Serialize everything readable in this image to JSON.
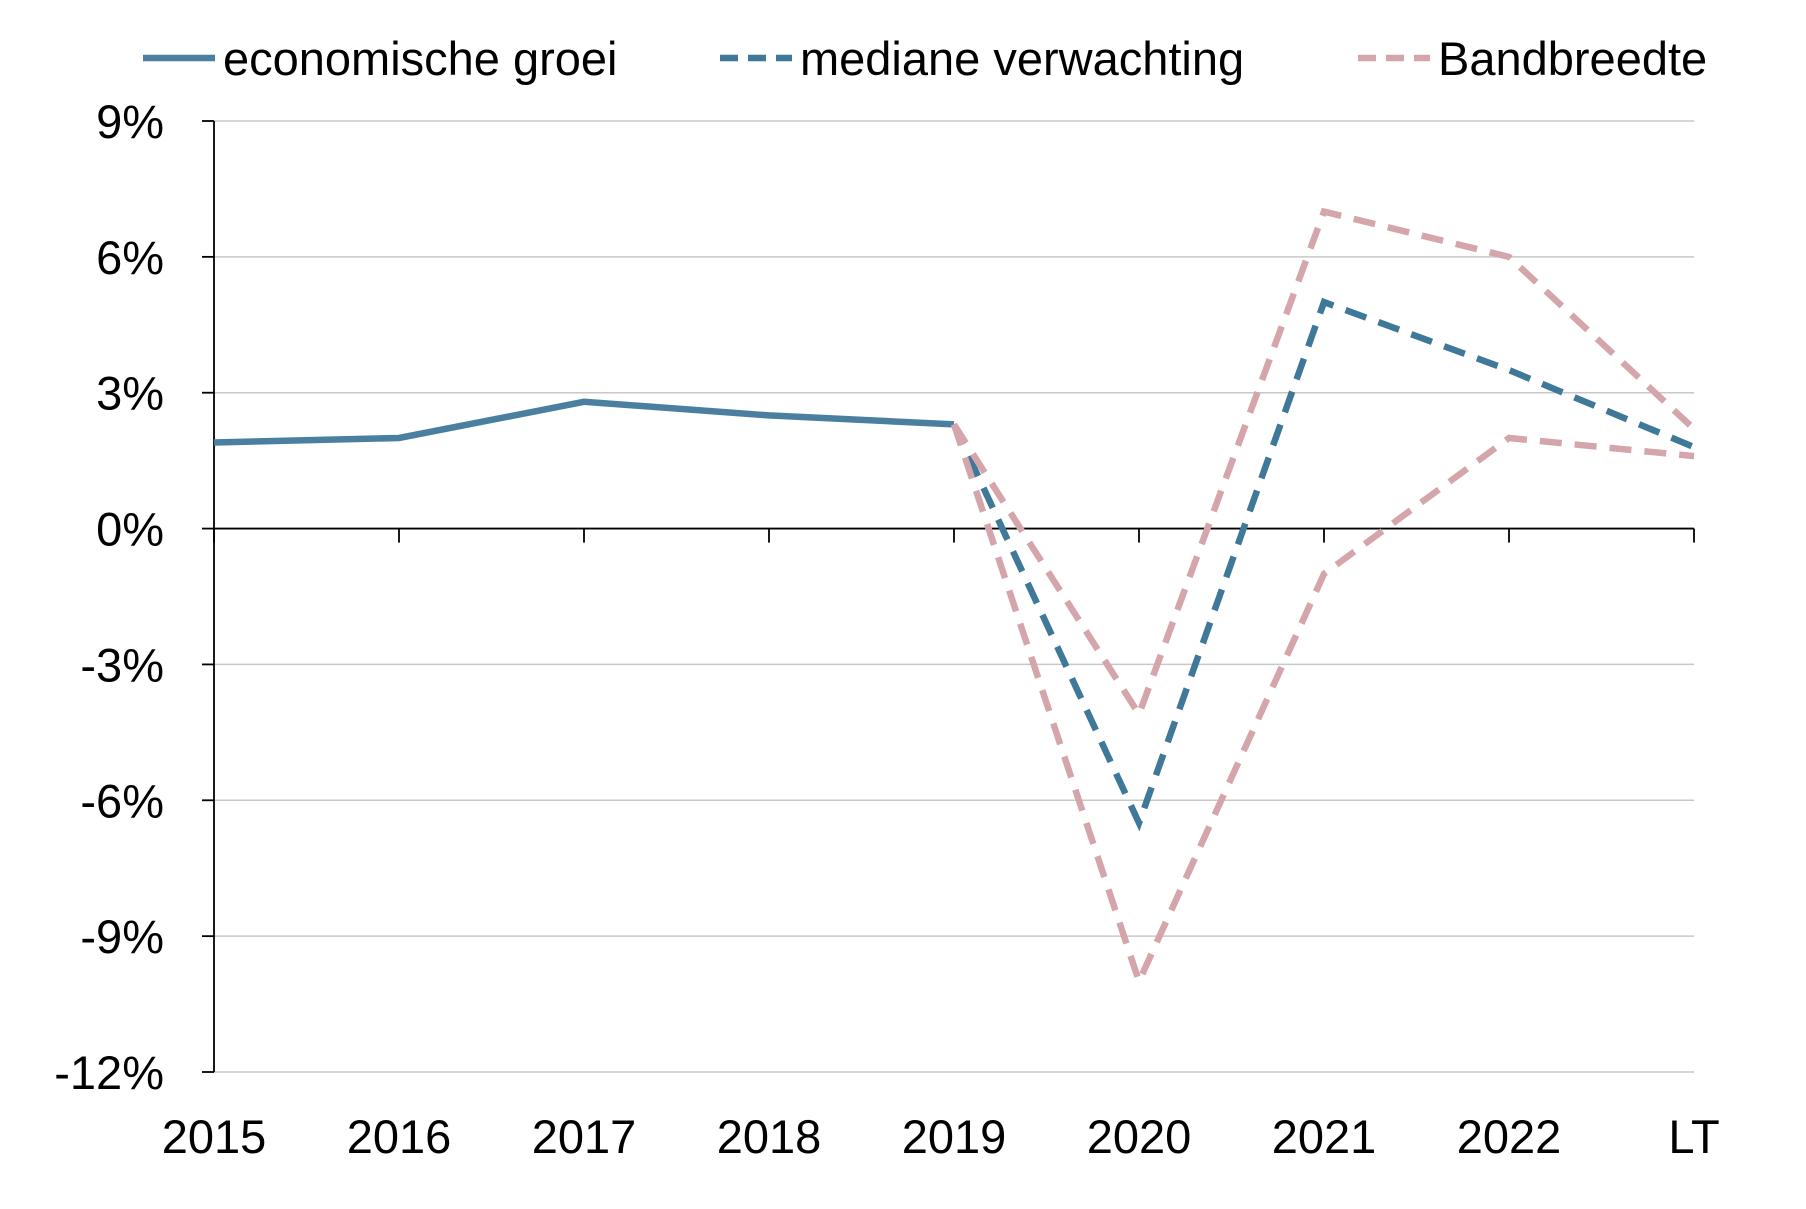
{
  "chart_data": {
    "type": "line",
    "title": "",
    "xlabel": "",
    "ylabel": "",
    "categories": [
      "2015",
      "2016",
      "2017",
      "2018",
      "2019",
      "2020",
      "2021",
      "2022",
      "LT"
    ],
    "ylim": [
      -12,
      9
    ],
    "yticks": [
      9,
      6,
      3,
      0,
      -3,
      -6,
      -9,
      -12
    ],
    "ytick_labels": [
      "9%",
      "6%",
      "3%",
      "0%",
      "-3%",
      "-6%",
      "-9%",
      "-12%"
    ],
    "grid": true,
    "legend_position": "top",
    "series": [
      {
        "name": "economische groei",
        "style": "solid",
        "color": "#4a7fa0",
        "points": [
          [
            0,
            1.9
          ],
          [
            1,
            2.0
          ],
          [
            2,
            2.8
          ],
          [
            3,
            2.5
          ],
          [
            4,
            2.3
          ]
        ]
      },
      {
        "name": "mediane verwachting",
        "style": "dashed",
        "color": "#3f7898",
        "points": [
          [
            4,
            2.3
          ],
          [
            5,
            -6.5
          ],
          [
            6,
            5.0
          ],
          [
            7,
            3.5
          ],
          [
            8,
            1.8
          ]
        ]
      },
      {
        "name": "Bandbreedte",
        "style": "dashed",
        "color": "#d4a5ab",
        "points": [
          [
            4,
            2.3
          ],
          [
            5,
            -4.1
          ],
          [
            6,
            7.0
          ],
          [
            7,
            6.0
          ],
          [
            8,
            2.2
          ]
        ]
      },
      {
        "name": "",
        "style": "dashed",
        "color": "#d4a5ab",
        "points": [
          [
            4,
            2.3
          ],
          [
            5,
            -10.0
          ],
          [
            6,
            -1.0
          ],
          [
            7,
            2.0
          ],
          [
            8,
            1.6
          ]
        ]
      }
    ]
  }
}
